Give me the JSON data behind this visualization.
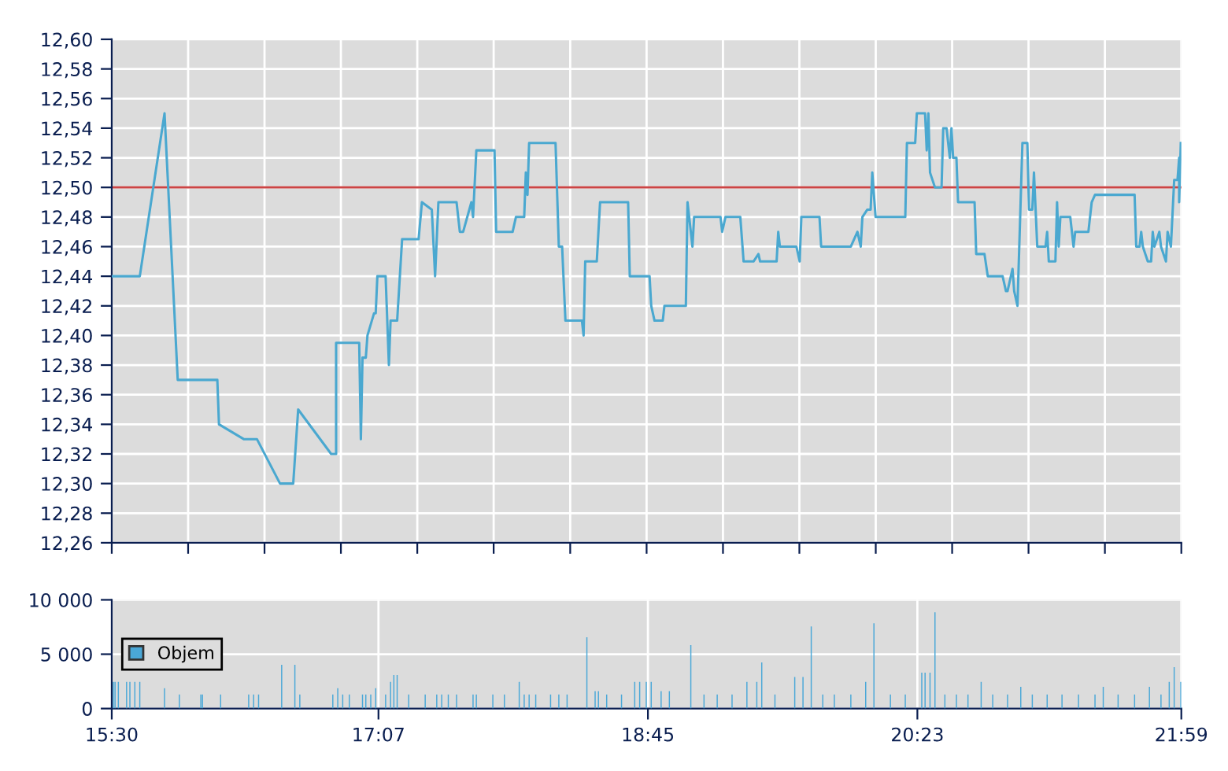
{
  "chart_data": [
    {
      "type": "line",
      "tick_labels": "y",
      "grid": true,
      "legend": false,
      "marker": "none",
      "line_style": "solid",
      "xlim": [
        15.5,
        21.9833
      ],
      "xticks": [
        {
          "value": 15.5,
          "label": null
        },
        {
          "value": 15.963,
          "label": null
        },
        {
          "value": 16.426,
          "label": null
        },
        {
          "value": 16.889,
          "label": null
        },
        {
          "value": 17.352,
          "label": null
        },
        {
          "value": 17.815,
          "label": null
        },
        {
          "value": 18.279,
          "label": null
        },
        {
          "value": 18.742,
          "label": null
        },
        {
          "value": 19.205,
          "label": null
        },
        {
          "value": 19.668,
          "label": null
        },
        {
          "value": 20.131,
          "label": null
        },
        {
          "value": 20.594,
          "label": null
        },
        {
          "value": 21.057,
          "label": null
        },
        {
          "value": 21.52,
          "label": null
        },
        {
          "value": 21.9833,
          "label": null
        }
      ],
      "ylim": [
        12.26,
        12.6
      ],
      "yticks": [
        {
          "value": 12.26,
          "label": "12,26"
        },
        {
          "value": 12.28,
          "label": "12,28"
        },
        {
          "value": 12.3,
          "label": "12,30"
        },
        {
          "value": 12.32,
          "label": "12,32"
        },
        {
          "value": 12.34,
          "label": "12,34"
        },
        {
          "value": 12.36,
          "label": "12,36"
        },
        {
          "value": 12.38,
          "label": "12,38"
        },
        {
          "value": 12.4,
          "label": "12,40"
        },
        {
          "value": 12.42,
          "label": "12,42"
        },
        {
          "value": 12.44,
          "label": "12,44"
        },
        {
          "value": 12.46,
          "label": "12,46"
        },
        {
          "value": 12.48,
          "label": "12,48"
        },
        {
          "value": 12.5,
          "label": "12,50"
        },
        {
          "value": 12.52,
          "label": "12,52"
        },
        {
          "value": 12.54,
          "label": "12,54"
        },
        {
          "value": 12.56,
          "label": "12,56"
        },
        {
          "value": 12.58,
          "label": "12,58"
        },
        {
          "value": 12.6,
          "label": "12,60"
        }
      ],
      "ref_lines": [
        {
          "axis": "y",
          "value": 12.5,
          "color": "#cc4444"
        }
      ],
      "series": [
        {
          "color": "#4aa8d0",
          "x": [
            15.5,
            15.67,
            15.82,
            15.9,
            16.14,
            16.15,
            16.3,
            16.38,
            16.52,
            16.6,
            16.63,
            16.83,
            16.86,
            16.86,
            17.0,
            17.01,
            17.02,
            17.04,
            17.05,
            17.09,
            17.1,
            17.11,
            17.16,
            17.18,
            17.19,
            17.23,
            17.26,
            17.36,
            17.38,
            17.44,
            17.46,
            17.48,
            17.59,
            17.61,
            17.63,
            17.68,
            17.69,
            17.71,
            17.82,
            17.83,
            17.93,
            17.95,
            18.0,
            18.01,
            18.02,
            18.03,
            18.19,
            18.21,
            18.23,
            18.25,
            18.35,
            18.36,
            18.37,
            18.44,
            18.46,
            18.63,
            18.64,
            18.76,
            18.77,
            18.79,
            18.84,
            18.85,
            18.98,
            18.99,
            19.02,
            19.03,
            19.19,
            19.2,
            19.22,
            19.31,
            19.33,
            19.39,
            19.42,
            19.43,
            19.53,
            19.54,
            19.55,
            19.65,
            19.67,
            19.68,
            19.79,
            19.8,
            19.98,
            20.02,
            20.04,
            20.05,
            20.08,
            20.1,
            20.11,
            20.13,
            20.31,
            20.32,
            20.37,
            20.38,
            20.43,
            20.44,
            20.45,
            20.46,
            20.49,
            20.53,
            20.54,
            20.56,
            20.58,
            20.59,
            20.6,
            20.62,
            20.63,
            20.73,
            20.74,
            20.79,
            20.81,
            20.9,
            20.92,
            20.93,
            20.96,
            20.97,
            20.99,
            21.02,
            21.05,
            21.06,
            21.08,
            21.09,
            21.11,
            21.16,
            21.17,
            21.18,
            21.22,
            21.23,
            21.24,
            21.25,
            21.31,
            21.33,
            21.34,
            21.42,
            21.44,
            21.46,
            21.7,
            21.71,
            21.73,
            21.74,
            21.75,
            21.78,
            21.8,
            21.81,
            21.82,
            21.85,
            21.86,
            21.89,
            21.9,
            21.92,
            21.94,
            21.96,
            21.97,
            21.97,
            21.98
          ],
          "values": [
            12.44,
            12.44,
            12.55,
            12.37,
            12.37,
            12.34,
            12.33,
            12.33,
            12.3,
            12.3,
            12.35,
            12.32,
            12.32,
            12.395,
            12.395,
            12.33,
            12.385,
            12.385,
            12.4,
            12.415,
            12.415,
            12.44,
            12.44,
            12.38,
            12.41,
            12.41,
            12.465,
            12.465,
            12.49,
            12.485,
            12.44,
            12.49,
            12.49,
            12.47,
            12.47,
            12.49,
            12.48,
            12.525,
            12.525,
            12.47,
            12.47,
            12.48,
            12.48,
            12.51,
            12.495,
            12.53,
            12.53,
            12.46,
            12.46,
            12.41,
            12.41,
            12.4,
            12.45,
            12.45,
            12.49,
            12.49,
            12.44,
            12.44,
            12.42,
            12.41,
            12.41,
            12.42,
            12.42,
            12.49,
            12.46,
            12.48,
            12.48,
            12.47,
            12.48,
            12.48,
            12.45,
            12.45,
            12.455,
            12.45,
            12.45,
            12.47,
            12.46,
            12.46,
            12.45,
            12.48,
            12.48,
            12.46,
            12.46,
            12.47,
            12.46,
            12.48,
            12.485,
            12.485,
            12.51,
            12.48,
            12.48,
            12.53,
            12.53,
            12.55,
            12.55,
            12.525,
            12.55,
            12.51,
            12.5,
            12.5,
            12.54,
            12.54,
            12.52,
            12.54,
            12.52,
            12.52,
            12.49,
            12.49,
            12.455,
            12.455,
            12.44,
            12.44,
            12.43,
            12.43,
            12.445,
            12.43,
            12.42,
            12.53,
            12.53,
            12.485,
            12.485,
            12.51,
            12.46,
            12.46,
            12.47,
            12.45,
            12.45,
            12.49,
            12.46,
            12.48,
            12.48,
            12.46,
            12.47,
            12.47,
            12.49,
            12.495,
            12.495,
            12.46,
            12.46,
            12.47,
            12.46,
            12.45,
            12.45,
            12.47,
            12.46,
            12.47,
            12.46,
            12.45,
            12.47,
            12.46,
            12.505,
            12.505,
            12.52,
            12.49,
            12.53
          ]
        }
      ]
    },
    {
      "type": "bar",
      "grid": true,
      "legend": "left",
      "xlim": [
        15.5,
        21.9833
      ],
      "xticks": [
        {
          "value": 15.5,
          "label": "15:30"
        },
        {
          "value": 17.1167,
          "label": "17:07"
        },
        {
          "value": 18.75,
          "label": "18:45"
        },
        {
          "value": 20.3833,
          "label": "20:23"
        },
        {
          "value": 21.9833,
          "label": "21:59"
        }
      ],
      "ylim": [
        0,
        10000
      ],
      "yticks": [
        0,
        {
          "value": 5000,
          "label": "5 000"
        },
        {
          "value": 10000,
          "label": "10 000"
        }
      ],
      "series": [
        {
          "name": "Objem",
          "color": "#4aa8d8",
          "x": [
            15.51,
            15.52,
            15.54,
            15.59,
            15.61,
            15.64,
            15.67,
            15.82,
            15.91,
            16.04,
            16.05,
            16.16,
            16.33,
            16.36,
            16.39,
            16.53,
            16.61,
            16.64,
            16.84,
            16.87,
            16.9,
            16.94,
            17.02,
            17.04,
            17.07,
            17.1,
            17.16,
            17.19,
            17.21,
            17.23,
            17.3,
            17.4,
            17.47,
            17.5,
            17.54,
            17.59,
            17.69,
            17.71,
            17.81,
            17.88,
            17.97,
            18.0,
            18.03,
            18.07,
            18.16,
            18.21,
            18.26,
            18.38,
            18.43,
            18.45,
            18.5,
            18.59,
            18.67,
            18.7,
            18.74,
            18.77,
            18.83,
            18.88,
            19.01,
            19.09,
            19.17,
            19.26,
            19.35,
            19.41,
            19.44,
            19.52,
            19.64,
            19.69,
            19.74,
            19.81,
            19.88,
            19.98,
            20.07,
            20.12,
            20.22,
            20.31,
            20.41,
            20.43,
            20.46,
            20.49,
            20.55,
            20.62,
            20.69,
            20.77,
            20.84,
            20.93,
            21.01,
            21.08,
            21.17,
            21.26,
            21.36,
            21.46,
            21.51,
            21.6,
            21.7,
            21.79,
            21.86,
            21.91,
            21.94,
            21.98
          ],
          "values": [
            2450,
            2450,
            2450,
            2450,
            2450,
            2450,
            2450,
            1870,
            1300,
            1300,
            1300,
            1300,
            1300,
            1300,
            1300,
            4030,
            4030,
            1300,
            1300,
            1870,
            1300,
            1300,
            1300,
            1300,
            1300,
            1870,
            1300,
            2450,
            3090,
            3090,
            1300,
            1300,
            1300,
            1300,
            1300,
            1300,
            1300,
            1300,
            1300,
            1300,
            2450,
            1300,
            1300,
            1300,
            1300,
            1300,
            1300,
            6550,
            1600,
            1600,
            1300,
            1300,
            2450,
            2450,
            2450,
            2450,
            1600,
            1600,
            5830,
            1300,
            1300,
            1300,
            2450,
            2450,
            4240,
            1300,
            2900,
            2900,
            7550,
            1300,
            1300,
            1300,
            2450,
            7840,
            1300,
            1300,
            3300,
            3300,
            3300,
            8850,
            1300,
            1300,
            1300,
            2450,
            1300,
            1300,
            2000,
            1300,
            1300,
            1300,
            1300,
            1300,
            2000,
            1300,
            1300,
            2000,
            1300,
            2450,
            3800,
            2450
          ]
        }
      ]
    }
  ]
}
